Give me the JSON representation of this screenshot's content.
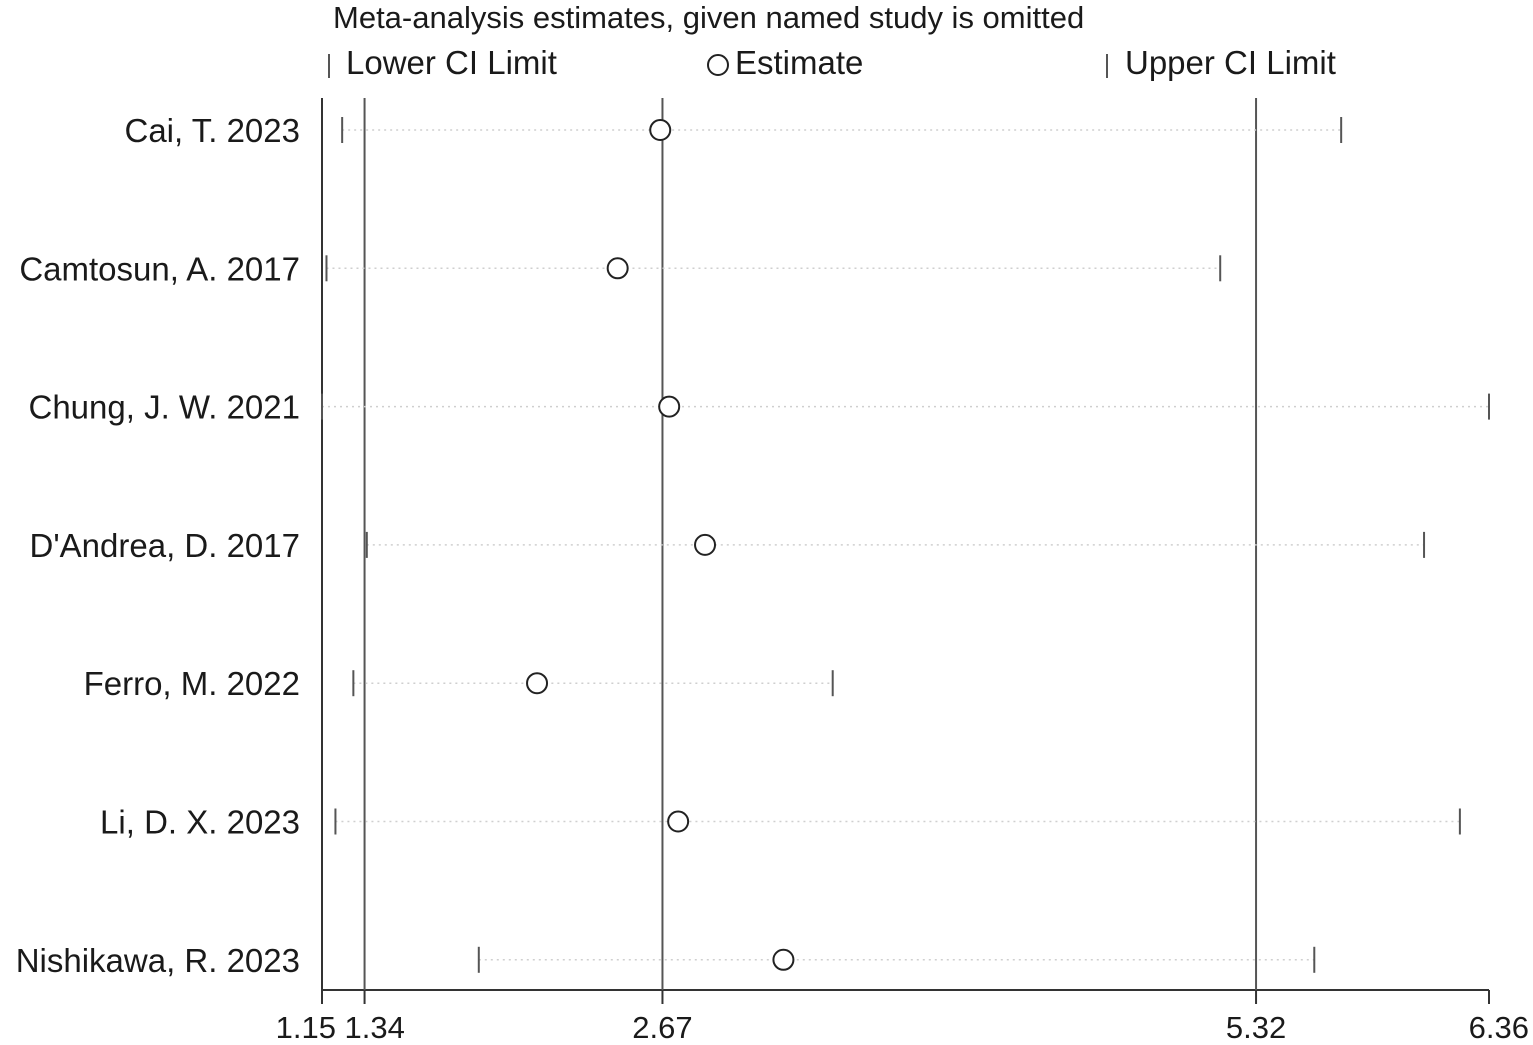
{
  "chart_data": {
    "type": "scatter",
    "title": "Meta-analysis estimates, given named study is omitted",
    "legend": {
      "placement": "top",
      "items": [
        {
          "label": "Lower CI Limit",
          "marker": "tick"
        },
        {
          "label": "Estimate",
          "marker": "circle"
        },
        {
          "label": "Upper CI Limit",
          "marker": "tick"
        }
      ]
    },
    "xlim": [
      1.15,
      6.36
    ],
    "xticks": [
      "1.15",
      "1.34",
      "2.67",
      "5.32",
      "6.36"
    ],
    "reference_lines": [
      1.34,
      2.67,
      5.32
    ],
    "grid": false,
    "studies": [
      {
        "name": "Cai, T. 2023",
        "lower": 1.24,
        "estimate": 2.66,
        "upper": 5.7
      },
      {
        "name": "Camtosun, A. 2017",
        "lower": 1.17,
        "estimate": 2.47,
        "upper": 5.16
      },
      {
        "name": "Chung, J. W. 2021",
        "lower": 1.15,
        "estimate": 2.7,
        "upper": 6.36
      },
      {
        "name": "D'Andrea, D. 2017",
        "lower": 1.35,
        "estimate": 2.86,
        "upper": 6.07
      },
      {
        "name": "Ferro, M. 2022",
        "lower": 1.29,
        "estimate": 2.11,
        "upper": 3.43
      },
      {
        "name": "Li, D. X. 2023",
        "lower": 1.21,
        "estimate": 2.74,
        "upper": 6.23
      },
      {
        "name": "Nishikawa, R. 2023",
        "lower": 1.85,
        "estimate": 3.21,
        "upper": 5.58
      }
    ]
  }
}
